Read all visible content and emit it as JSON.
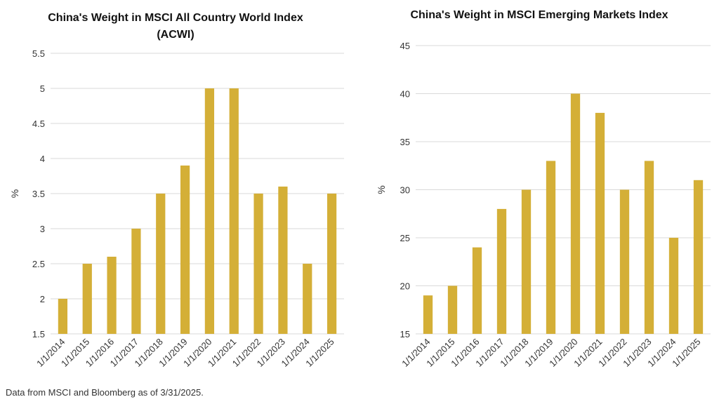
{
  "footnote": "Data from MSCI and Bloomberg as of 3/31/2025.",
  "bar_color": "#D4AF37",
  "grid_color": "#D9D9D9",
  "chart_data": [
    {
      "type": "bar",
      "title_lines": [
        "China's Weight in MSCI All Country World Index",
        "(ACWI)"
      ],
      "ylabel": "%",
      "ylim": [
        1.5,
        5.5
      ],
      "yticks": [
        "1.5",
        "2",
        "2.5",
        "3",
        "3.5",
        "4",
        "4.5",
        "5",
        "5.5"
      ],
      "categories": [
        "1/1/2014",
        "1/1/2015",
        "1/1/2016",
        "1/1/2017",
        "1/1/2018",
        "1/1/2019",
        "1/1/2020",
        "1/1/2021",
        "1/1/2022",
        "1/1/2023",
        "1/1/2024",
        "1/1/2025"
      ],
      "values": [
        2.0,
        2.5,
        2.6,
        3.0,
        3.5,
        3.9,
        5.0,
        5.0,
        3.5,
        3.6,
        2.5,
        3.5
      ],
      "grid": true
    },
    {
      "type": "bar",
      "title_lines": [
        "China's Weight in MSCI Emerging Markets Index"
      ],
      "ylabel": "%",
      "ylim": [
        15,
        45
      ],
      "yticks": [
        "15",
        "20",
        "25",
        "30",
        "35",
        "40",
        "45"
      ],
      "categories": [
        "1/1/2014",
        "1/1/2015",
        "1/1/2016",
        "1/1/2017",
        "1/1/2018",
        "1/1/2019",
        "1/1/2020",
        "1/1/2021",
        "1/1/2022",
        "1/1/2023",
        "1/1/2024",
        "1/1/2025"
      ],
      "values": [
        19,
        20,
        24,
        28,
        30,
        33,
        40,
        38,
        30,
        33,
        25,
        31
      ],
      "grid": true
    }
  ]
}
